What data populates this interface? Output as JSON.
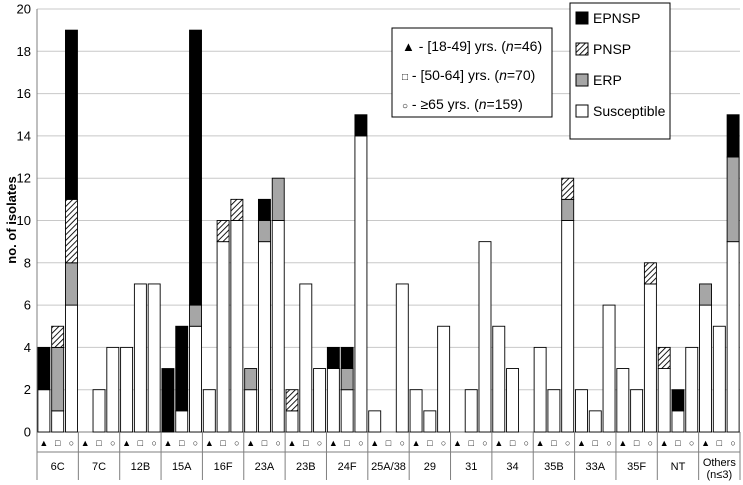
{
  "chart_data": {
    "type": "bar",
    "stacked": true,
    "grouped": true,
    "title": "",
    "xlabel": "",
    "ylabel": "no. of isolates",
    "ylim": [
      0,
      20
    ],
    "yticks": [
      0,
      2,
      4,
      6,
      8,
      10,
      12,
      14,
      16,
      18,
      20
    ],
    "grid": true,
    "categories": [
      "6C",
      "7C",
      "12B",
      "15A",
      "16F",
      "23A",
      "23B",
      "24F",
      "25A/38",
      "29",
      "31",
      "34",
      "35B",
      "33A",
      "35F",
      "NT",
      "Others (n≤3)"
    ],
    "group_markers": [
      "▲",
      "□",
      "○"
    ],
    "age_groups": [
      {
        "marker": "▲",
        "dash": "-",
        "range": "[18-49]",
        "unit": "yrs.",
        "n_label": "n",
        "n": "46"
      },
      {
        "marker": "□",
        "dash": "-",
        "range": "[50-64]",
        "unit": "yrs.",
        "n_label": "n",
        "n": "70"
      },
      {
        "marker": "○",
        "dash": "-",
        "range": "≥65",
        "unit": "yrs.",
        "n_label": "n",
        "n": "159"
      }
    ],
    "legend_position": "top-right",
    "series": [
      {
        "name": "Susceptible",
        "color": "#ffffff",
        "pattern": "none",
        "values": [
          [
            2,
            1,
            6
          ],
          [
            0,
            2,
            4
          ],
          [
            4,
            7,
            7
          ],
          [
            0,
            1,
            5
          ],
          [
            2,
            9,
            10
          ],
          [
            2,
            9,
            10
          ],
          [
            1,
            7,
            3
          ],
          [
            3,
            2,
            14
          ],
          [
            1,
            0,
            7
          ],
          [
            2,
            1,
            5
          ],
          [
            0,
            2,
            9
          ],
          [
            5,
            3,
            0
          ],
          [
            4,
            2,
            10
          ],
          [
            2,
            1,
            6
          ],
          [
            3,
            2,
            7
          ],
          [
            3,
            1,
            4
          ],
          [
            6,
            5,
            9
          ]
        ]
      },
      {
        "name": "ERP",
        "color": "#a6a6a6",
        "pattern": "none",
        "values": [
          [
            0,
            3,
            2
          ],
          [
            0,
            0,
            0
          ],
          [
            0,
            0,
            0
          ],
          [
            0,
            0,
            1
          ],
          [
            0,
            0,
            0
          ],
          [
            1,
            1,
            2
          ],
          [
            0,
            0,
            0
          ],
          [
            0,
            1,
            0
          ],
          [
            0,
            0,
            0
          ],
          [
            0,
            0,
            0
          ],
          [
            0,
            0,
            0
          ],
          [
            0,
            0,
            0
          ],
          [
            0,
            0,
            1
          ],
          [
            0,
            0,
            0
          ],
          [
            0,
            0,
            0
          ],
          [
            0,
            0,
            0
          ],
          [
            1,
            0,
            4
          ]
        ]
      },
      {
        "name": "PNSP",
        "color": "#ffffff",
        "pattern": "hatch",
        "values": [
          [
            0,
            1,
            3
          ],
          [
            0,
            0,
            0
          ],
          [
            0,
            0,
            0
          ],
          [
            0,
            0,
            0
          ],
          [
            0,
            1,
            1
          ],
          [
            0,
            0,
            0
          ],
          [
            1,
            0,
            0
          ],
          [
            0,
            0,
            0
          ],
          [
            0,
            0,
            0
          ],
          [
            0,
            0,
            0
          ],
          [
            0,
            0,
            0
          ],
          [
            0,
            0,
            0
          ],
          [
            0,
            0,
            1
          ],
          [
            0,
            0,
            0
          ],
          [
            0,
            0,
            1
          ],
          [
            1,
            0,
            0
          ],
          [
            0,
            0,
            0
          ]
        ]
      },
      {
        "name": "EPNSP",
        "color": "#000000",
        "pattern": "none",
        "values": [
          [
            2,
            0,
            8
          ],
          [
            0,
            0,
            0
          ],
          [
            0,
            0,
            0
          ],
          [
            3,
            4,
            13
          ],
          [
            0,
            0,
            0
          ],
          [
            0,
            1,
            0
          ],
          [
            0,
            0,
            0
          ],
          [
            1,
            1,
            1
          ],
          [
            0,
            0,
            0
          ],
          [
            0,
            0,
            0
          ],
          [
            0,
            0,
            0
          ],
          [
            0,
            0,
            0
          ],
          [
            0,
            0,
            0
          ],
          [
            0,
            0,
            0
          ],
          [
            0,
            0,
            0
          ],
          [
            0,
            1,
            0
          ],
          [
            0,
            0,
            2
          ]
        ]
      }
    ]
  }
}
